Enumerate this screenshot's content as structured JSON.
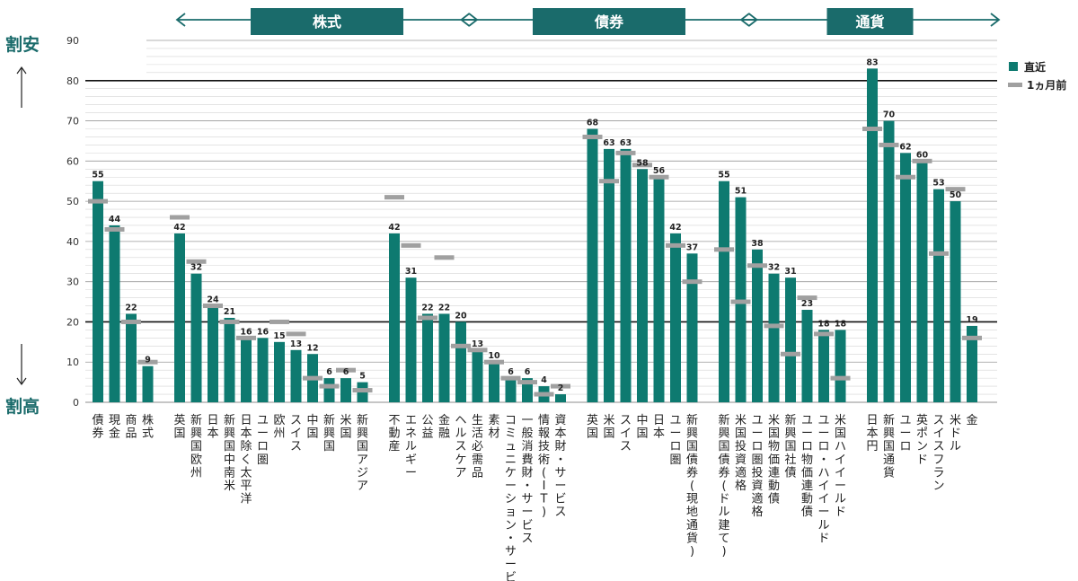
{
  "chart_data": {
    "type": "bar",
    "ylim": [
      0,
      90
    ],
    "yticks": [
      0,
      10,
      20,
      30,
      40,
      50,
      60,
      70,
      80,
      90
    ],
    "reference_lines": [
      20,
      80
    ],
    "side_labels": {
      "top": "割安",
      "bottom": "割高"
    },
    "legend": {
      "current": "直近",
      "previous": "1ヵ月前",
      "position": "top-right"
    },
    "sections": [
      {
        "label": "株式",
        "from": 4,
        "to": 20
      },
      {
        "label": "債券",
        "from": 21,
        "to": 35
      },
      {
        "label": "通貨",
        "from": 36,
        "to": 42
      }
    ],
    "categories": [
      "債券",
      "現金",
      "商品",
      "株式",
      "英国",
      "新興国欧州",
      "日本",
      "新興国中南米",
      "日本除く太平洋",
      "ユーロ圏",
      "欧州",
      "スイス",
      "中国",
      "新興国",
      "米国",
      "新興国アジア",
      "不動産",
      "エネルギー",
      "公益",
      "金融",
      "ヘルスケア",
      "生活必需品",
      "素材",
      "コミュニケーション・サービス",
      "一般消費財・サービス",
      "情報技術(IT)",
      "資本財・サービス",
      "英国",
      "米国",
      "スイス",
      "中国",
      "日本",
      "ユーロ圏",
      "新興国債券(現地通貨)",
      "新興国債券(ドル建て)",
      "米国投資適格",
      "ユーロ圏投資適格",
      "米国物価連動債",
      "新興国社債",
      "ユーロ物価連動債",
      "ユーロ・ハイイールド",
      "米国ハイイールド",
      "日本円",
      "新興国通貨",
      "ユーロ",
      "英ポンド",
      "スイスフラン",
      "米ドル",
      "金"
    ],
    "gaps_after": [
      3,
      15,
      26,
      33,
      41
    ],
    "series": [
      {
        "name": "直近",
        "color": "#0e7a70",
        "values": [
          55,
          44,
          22,
          9,
          42,
          32,
          24,
          21,
          16,
          16,
          15,
          13,
          12,
          6,
          6,
          5,
          42,
          31,
          22,
          22,
          20,
          13,
          10,
          6,
          6,
          4,
          2,
          68,
          63,
          63,
          58,
          56,
          42,
          37,
          55,
          51,
          38,
          32,
          31,
          23,
          18,
          18,
          83,
          70,
          62,
          60,
          53,
          50,
          19
        ]
      },
      {
        "name": "1ヵ月前",
        "color": "#a0a0a0",
        "values": [
          50,
          43,
          20,
          10,
          46,
          35,
          24,
          20,
          16,
          null,
          20,
          17,
          6,
          4,
          8,
          3,
          51,
          39,
          21,
          36,
          14,
          13,
          10,
          6,
          5,
          2,
          4,
          66,
          55,
          62,
          59,
          56,
          39,
          30,
          38,
          25,
          34,
          19,
          12,
          26,
          17,
          6,
          68,
          64,
          56,
          60,
          37,
          53,
          16
        ]
      }
    ]
  }
}
